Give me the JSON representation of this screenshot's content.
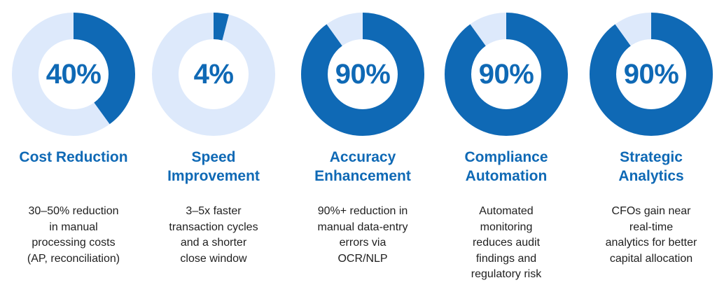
{
  "chart_data": {
    "type": "pie",
    "style": "donut",
    "colors": {
      "filled": "#0f69b5",
      "track": "#dde9fb"
    },
    "items": [
      {
        "value": 40,
        "label": "40%",
        "title_lines": [
          "Cost Reduction"
        ],
        "desc_lines": [
          "30–50% reduction",
          "in manual",
          "processing costs",
          "(AP, reconciliation)"
        ]
      },
      {
        "value": 4,
        "label": "4%",
        "title_lines": [
          "Speed",
          "Improvement"
        ],
        "desc_lines": [
          "3–5x faster",
          "transaction cycles",
          "and a shorter",
          "close window"
        ]
      },
      {
        "value": 90,
        "label": "90%",
        "title_lines": [
          "Accuracy",
          "Enhancement"
        ],
        "desc_lines": [
          "90%+ reduction in",
          "manual data-entry",
          "errors via",
          "OCR/NLP"
        ]
      },
      {
        "value": 90,
        "label": "90%",
        "title_lines": [
          "Compliance",
          "Automation"
        ],
        "desc_lines": [
          "Automated",
          "monitoring",
          "reduces audit",
          "findings and",
          "regulatory risk"
        ]
      },
      {
        "value": 90,
        "label": "90%",
        "title_lines": [
          "Strategic",
          "Analytics"
        ],
        "desc_lines": [
          "CFOs gain near",
          "real-time",
          "analytics for better",
          "capital allocation"
        ]
      }
    ]
  }
}
